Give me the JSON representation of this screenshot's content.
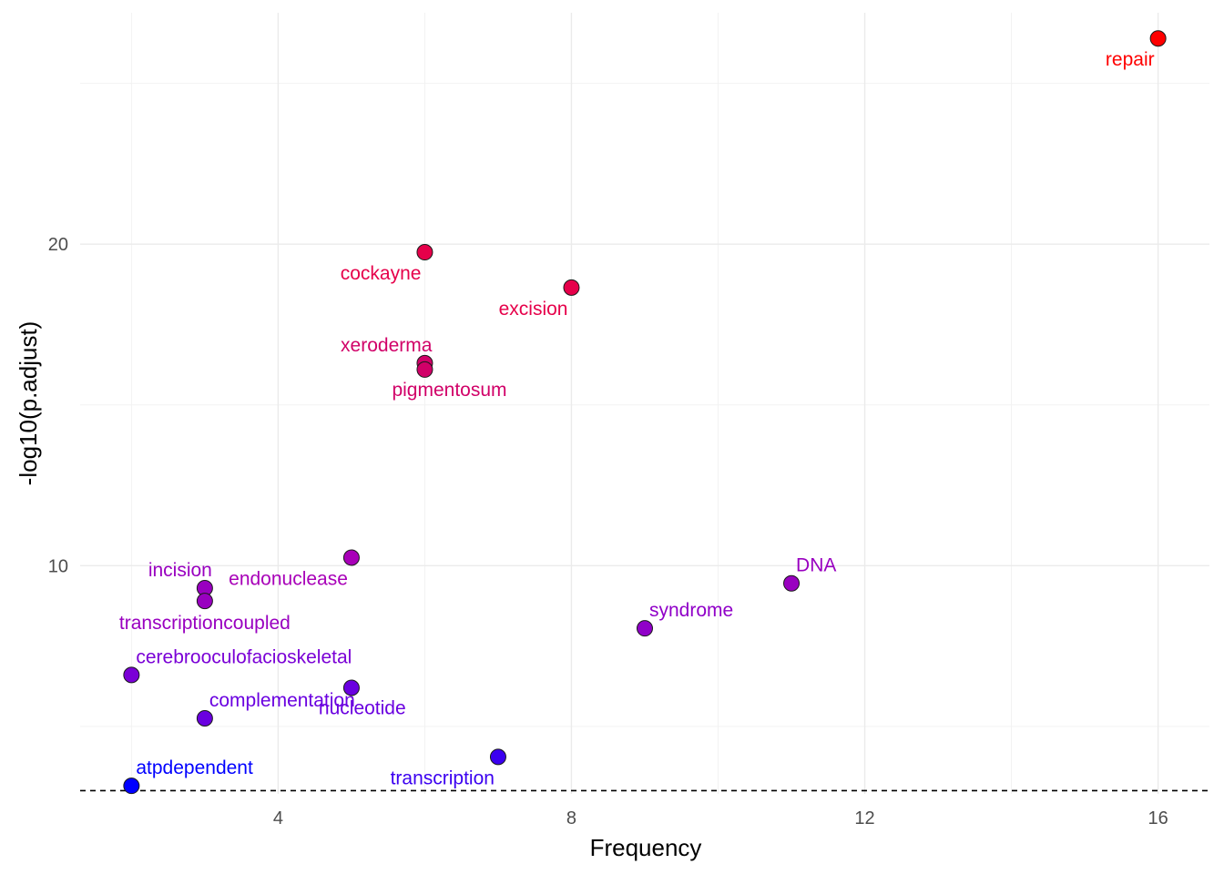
{
  "chart_data": {
    "type": "scatter",
    "xlabel": "Frequency",
    "ylabel": "-log10(p.adjust)",
    "xlim": [
      1.3,
      16.7
    ],
    "ylim": [
      2.9,
      27.2
    ],
    "x_ticks": [
      4,
      8,
      12,
      16
    ],
    "x_minor_ticks": [
      2,
      6,
      10,
      14
    ],
    "y_ticks": [
      10,
      20
    ],
    "y_minor_ticks": [
      5,
      15,
      25
    ],
    "grid": true,
    "threshold_line": {
      "y": 3.0,
      "style": "dashed"
    },
    "points": [
      {
        "label": "repair",
        "x": 16,
        "y": 26.4,
        "color": "#ff0000",
        "label_pos": "below-left"
      },
      {
        "label": "cockayne",
        "x": 6,
        "y": 19.75,
        "color": "#e6004a",
        "label_pos": "below-left"
      },
      {
        "label": "excision",
        "x": 8,
        "y": 18.65,
        "color": "#e6004a",
        "label_pos": "below-left"
      },
      {
        "label": "xeroderma",
        "x": 6,
        "y": 16.3,
        "color": "#d10068",
        "label_pos": "above-left"
      },
      {
        "label": "pigmentosum",
        "x": 6,
        "y": 16.1,
        "color": "#d10068",
        "label_pos": "below-right"
      },
      {
        "label": "endonuclease",
        "x": 5,
        "y": 10.25,
        "color": "#a800b8",
        "label_pos": "below-left"
      },
      {
        "label": "DNA",
        "x": 11,
        "y": 9.45,
        "color": "#9900c0",
        "label_pos": "above-right"
      },
      {
        "label": "incision",
        "x": 3,
        "y": 9.3,
        "color": "#9900c0",
        "label_pos": "above-left"
      },
      {
        "label": "transcriptioncoupled",
        "x": 3,
        "y": 8.9,
        "color": "#9900c0",
        "label_pos": "below"
      },
      {
        "label": "syndrome",
        "x": 9,
        "y": 8.05,
        "color": "#9000c8",
        "label_pos": "above-right"
      },
      {
        "label": "cerebrooculofacioskeletal",
        "x": 2,
        "y": 6.6,
        "color": "#7a00d6",
        "label_pos": "above-right"
      },
      {
        "label": "nucleotide",
        "x": 5,
        "y": 6.2,
        "color": "#6a00e0",
        "label_pos": "below-right"
      },
      {
        "label": "complementation",
        "x": 3,
        "y": 5.25,
        "color": "#6a00e0",
        "label_pos": "above-right"
      },
      {
        "label": "transcription",
        "x": 7,
        "y": 4.05,
        "color": "#3b00f0",
        "label_pos": "below-left"
      },
      {
        "label": "atpdependent",
        "x": 2,
        "y": 3.15,
        "color": "#0000ff",
        "label_pos": "above-right"
      }
    ]
  }
}
